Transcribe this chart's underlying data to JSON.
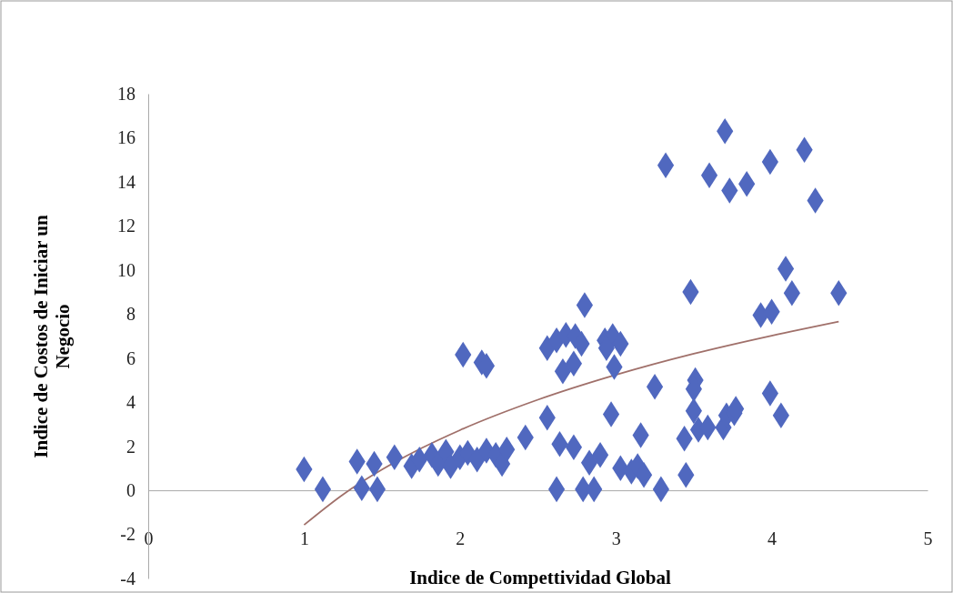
{
  "chart_data": {
    "type": "scatter",
    "xlabel": "Indice de Compettividad Global",
    "ylabel": "Indice de Costos de Iniciar un Negocio",
    "xlim": [
      0,
      5
    ],
    "ylim": [
      -4,
      18
    ],
    "xticks": [
      0,
      1,
      2,
      3,
      4,
      5
    ],
    "yticks": [
      -4,
      -2,
      0,
      2,
      4,
      6,
      8,
      10,
      12,
      14,
      16,
      18
    ],
    "grid": false,
    "series": [
      {
        "type": "scatter",
        "marker": "diamond",
        "color": "#5068bf",
        "x": [
          1.0,
          1.12,
          1.34,
          1.37,
          1.45,
          1.47,
          1.58,
          1.69,
          1.74,
          1.82,
          1.86,
          1.91,
          1.94,
          2.0,
          2.05,
          2.11,
          2.17,
          2.23,
          2.27,
          2.3,
          2.02,
          2.14,
          2.17,
          2.42,
          2.56,
          2.56,
          2.62,
          2.68,
          2.74,
          2.78,
          2.66,
          2.73,
          2.62,
          2.64,
          2.73,
          2.8,
          2.79,
          2.86,
          2.83,
          2.9,
          2.93,
          2.98,
          3.03,
          2.94,
          2.99,
          2.97,
          3.03,
          3.1,
          3.14,
          3.18,
          3.16,
          3.25,
          3.29,
          3.32,
          3.44,
          3.45,
          3.48,
          3.51,
          3.5,
          3.5,
          3.53,
          3.59,
          3.6,
          3.69,
          3.71,
          3.76,
          3.77,
          3.7,
          3.73,
          3.84,
          3.93,
          4.0,
          3.99,
          4.06,
          3.99,
          4.09,
          4.13,
          4.21,
          4.28,
          4.43
        ],
        "values": [
          0.95,
          0.05,
          1.3,
          0.1,
          1.2,
          0.05,
          1.5,
          1.1,
          1.4,
          1.6,
          1.2,
          1.75,
          1.1,
          1.5,
          1.7,
          1.4,
          1.8,
          1.6,
          1.2,
          1.85,
          6.15,
          5.8,
          5.65,
          2.4,
          3.3,
          6.45,
          6.8,
          7.05,
          7.0,
          6.65,
          5.4,
          5.75,
          0.05,
          2.1,
          1.95,
          8.4,
          0.05,
          0.05,
          1.25,
          1.6,
          6.8,
          7.0,
          6.65,
          6.45,
          5.6,
          3.45,
          1.0,
          0.85,
          1.1,
          0.7,
          2.5,
          4.7,
          0.05,
          14.75,
          2.35,
          0.7,
          9.0,
          5.0,
          4.6,
          3.6,
          2.75,
          2.85,
          14.3,
          2.85,
          3.4,
          3.5,
          3.7,
          16.3,
          13.6,
          13.9,
          7.95,
          8.1,
          4.4,
          3.4,
          14.9,
          10.05,
          8.95,
          15.45,
          13.15,
          8.95
        ]
      },
      {
        "type": "line",
        "color": "#a0706a",
        "x": [
          1,
          1.25,
          1.5,
          1.75,
          2,
          2.5,
          3,
          3.5,
          4,
          4.43
        ],
        "values": [
          -1.57,
          -0.19,
          0.94,
          1.9,
          2.73,
          4.11,
          5.24,
          6.2,
          7.02,
          7.66
        ]
      }
    ]
  }
}
